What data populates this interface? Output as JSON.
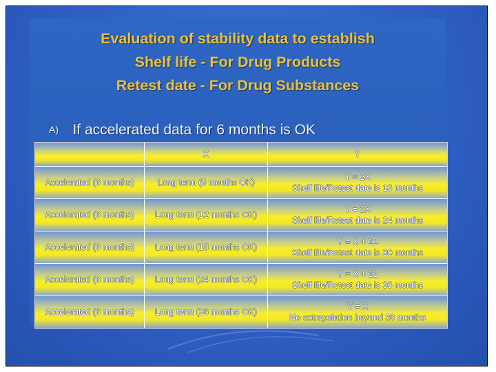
{
  "title_lines": [
    "Evaluation of stability data to establish",
    "Shelf life - For Drug Products",
    "Retest date - For Drug Substances"
  ],
  "subheading": {
    "marker": "A)",
    "text": "If accelerated data for 6 months is OK"
  },
  "table": {
    "headers": [
      "",
      "X",
      "Y"
    ],
    "rows": [
      {
        "accelerated": "Accelerated (6 months)",
        "long_term": "Long term (9 months OK)",
        "rule": "Y = 2X",
        "result": "Shelf life/Retest date is 18 months"
      },
      {
        "accelerated": "Accelerated (6 months)",
        "long_term": "Long term (12 months OK)",
        "rule": "Y = 2X",
        "result": "Shelf life/Retest date is 24 months"
      },
      {
        "accelerated": "Accelerated (6 months)",
        "long_term": "Long term (18 months OK)",
        "rule": "Y = X + 12",
        "result": "Shelf life/Retest date is 30 months"
      },
      {
        "accelerated": "Accelerated (6 months)",
        "long_term": "Long term (24 months OK)",
        "rule": "Y = X + 12",
        "result": "Shelf life/Retest date is 36 months"
      },
      {
        "accelerated": "Accelerated (6 months)",
        "long_term": "Long term (36 months OK)",
        "rule": "Y = X",
        "result": "No extrapolation beyond 36 months"
      }
    ]
  },
  "colors": {
    "slide_background": "#2f5fc4",
    "title_text": "#e9c13a",
    "cell_highlight": "#f7ee2a",
    "border": "#000000"
  }
}
